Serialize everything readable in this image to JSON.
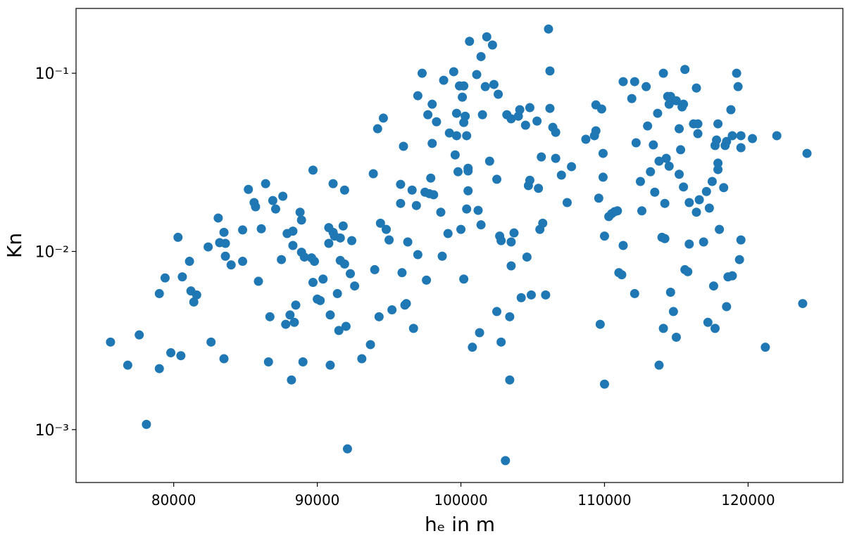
{
  "chart_data": {
    "type": "scatter",
    "xlabel": "hₑ in m",
    "ylabel": "Kn",
    "color": "#1f77b4",
    "yscale": "log",
    "xlim": [
      73200,
      126600
    ],
    "ylim": [
      0.000505,
      0.231
    ],
    "xticks": [
      80000,
      90000,
      100000,
      110000,
      120000
    ],
    "yticks": [
      {
        "value": 0.001,
        "label": "10⁻³"
      },
      {
        "value": 0.01,
        "label": "10⁻²"
      },
      {
        "value": 0.1,
        "label": "10⁻¹"
      }
    ],
    "x": [
      75600,
      76800,
      77600,
      78100,
      79000,
      79400,
      79000,
      79800,
      80300,
      80500,
      80600,
      81100,
      81200,
      81400,
      81600,
      82400,
      82600,
      83100,
      83200,
      83500,
      83600,
      83600,
      83500,
      84000,
      84800,
      84800,
      85200,
      85600,
      85700,
      85900,
      86100,
      86400,
      86600,
      86700,
      86900,
      87100,
      87500,
      87600,
      87800,
      87900,
      88100,
      88200,
      88300,
      88300,
      88400,
      88500,
      88800,
      88900,
      88900,
      89000,
      89100,
      89600,
      89700,
      89700,
      89800,
      90000,
      90200,
      90400,
      90800,
      90800,
      90900,
      90900,
      91100,
      91100,
      91200,
      91400,
      91500,
      91600,
      91600,
      91800,
      91900,
      92000,
      92100,
      91900,
      92300,
      92400,
      92600,
      93100,
      93700,
      93900,
      94000,
      94200,
      94300,
      94400,
      94600,
      94800,
      95000,
      95200,
      95800,
      95800,
      96000,
      95900,
      96100,
      96200,
      96300,
      96600,
      96700,
      96900,
      97000,
      97000,
      97300,
      97500,
      97600,
      97700,
      97800,
      97900,
      98000,
      98000,
      98100,
      98300,
      98600,
      98700,
      98800,
      99100,
      99200,
      99500,
      99600,
      99700,
      99700,
      99800,
      99900,
      100000,
      100100,
      100200,
      100200,
      100200,
      100300,
      100400,
      100500,
      100500,
      100500,
      100400,
      100600,
      100800,
      101100,
      101200,
      101300,
      101400,
      101400,
      101500,
      101700,
      101800,
      102000,
      102200,
      102300,
      102500,
      102500,
      102600,
      102700,
      102800,
      102800,
      103100,
      103200,
      103400,
      103400,
      103500,
      103500,
      103500,
      103700,
      104000,
      104100,
      104200,
      104500,
      104600,
      104700,
      104800,
      104800,
      104900,
      105300,
      105400,
      105500,
      105600,
      105700,
      105900,
      106100,
      106200,
      106200,
      106400,
      106600,
      106600,
      107000,
      107400,
      107700,
      108700,
      109300,
      109400,
      109400,
      109600,
      109700,
      109800,
      109900,
      109900,
      110000,
      110000,
      110300,
      110500,
      110700,
      110900,
      111000,
      111200,
      111300,
      111300,
      111900,
      112100,
      112100,
      112200,
      112500,
      112600,
      112900,
      113000,
      113200,
      113400,
      113500,
      113700,
      113800,
      113800,
      114000,
      114100,
      114100,
      114200,
      114200,
      114300,
      114400,
      114500,
      114500,
      114600,
      114600,
      114800,
      115000,
      115000,
      115200,
      115200,
      115300,
      115400,
      115500,
      115500,
      115600,
      115600,
      115800,
      115900,
      115900,
      116200,
      116400,
      116400,
      116500,
      116500,
      116600,
      116900,
      117100,
      117200,
      117300,
      117500,
      117600,
      117700,
      117700,
      117800,
      117900,
      117900,
      117900,
      118000,
      118300,
      118400,
      118500,
      118500,
      118600,
      118800,
      118900,
      118900,
      119200,
      119300,
      119400,
      119500,
      119500,
      119500,
      120300,
      121200,
      122000,
      123800,
      124100
    ],
    "values": [
      0.0031,
      0.0023,
      0.0034,
      0.00107,
      0.0058,
      0.0071,
      0.0022,
      0.0027,
      0.012,
      0.0026,
      0.0072,
      0.0088,
      0.006,
      0.0052,
      0.0057,
      0.0106,
      0.0031,
      0.0154,
      0.0112,
      0.0128,
      0.0111,
      0.0094,
      0.0025,
      0.0084,
      0.0088,
      0.0132,
      0.0223,
      0.0188,
      0.0178,
      0.0068,
      0.0134,
      0.024,
      0.0024,
      0.0043,
      0.0193,
      0.0173,
      0.009,
      0.0204,
      0.0039,
      0.0126,
      0.0044,
      0.0019,
      0.013,
      0.0108,
      0.004,
      0.005,
      0.0166,
      0.015,
      0.0099,
      0.0024,
      0.0093,
      0.0092,
      0.0286,
      0.0067,
      0.0088,
      0.0054,
      0.0053,
      0.007,
      0.0136,
      0.0111,
      0.0044,
      0.0023,
      0.0128,
      0.024,
      0.0122,
      0.0058,
      0.0036,
      0.0119,
      0.0089,
      0.0139,
      0.0221,
      0.0038,
      0.00078,
      0.0085,
      0.0075,
      0.0115,
      0.0064,
      0.0025,
      0.003,
      0.0273,
      0.0079,
      0.0488,
      0.0043,
      0.0144,
      0.056,
      0.0133,
      0.0116,
      0.0047,
      0.0238,
      0.0186,
      0.0389,
      0.0076,
      0.005,
      0.0051,
      0.0113,
      0.0221,
      0.0037,
      0.0181,
      0.0748,
      0.0096,
      0.1,
      0.0215,
      0.0069,
      0.0585,
      0.0211,
      0.0258,
      0.067,
      0.0404,
      0.0208,
      0.0534,
      0.0166,
      0.0094,
      0.0913,
      0.0126,
      0.0462,
      0.102,
      0.0348,
      0.0596,
      0.0446,
      0.028,
      0.0849,
      0.0133,
      0.0734,
      0.007,
      0.0849,
      0.0529,
      0.0574,
      0.0446,
      0.0293,
      0.0283,
      0.0219,
      0.0173,
      0.151,
      0.0029,
      0.0983,
      0.017,
      0.0035,
      0.124,
      0.0141,
      0.0585,
      0.0841,
      0.16,
      0.0321,
      0.144,
      0.0865,
      0.0254,
      0.0046,
      0.0762,
      0.0122,
      0.0031,
      0.0115,
      0.00067,
      0.0585,
      0.0043,
      0.0019,
      0.0083,
      0.0113,
      0.0555,
      0.0127,
      0.0574,
      0.0624,
      0.0055,
      0.0511,
      0.0093,
      0.0234,
      0.0251,
      0.0641,
      0.0057,
      0.0539,
      0.0226,
      0.0133,
      0.0339,
      0.0144,
      0.0057,
      0.177,
      0.0635,
      0.103,
      0.0497,
      0.0333,
      0.0466,
      0.0268,
      0.0188,
      0.0299,
      0.0426,
      0.0446,
      0.0475,
      0.0664,
      0.0199,
      0.0039,
      0.063,
      0.0261,
      0.0355,
      0.0018,
      0.0122,
      0.0157,
      0.0163,
      0.0167,
      0.0169,
      0.0076,
      0.0074,
      0.0108,
      0.0897,
      0.0721,
      0.0058,
      0.0897,
      0.0407,
      0.0247,
      0.0169,
      0.0841,
      0.0506,
      0.028,
      0.0396,
      0.0215,
      0.0596,
      0.0023,
      0.0321,
      0.012,
      0.1,
      0.0037,
      0.0186,
      0.0118,
      0.0333,
      0.0741,
      0.067,
      0.0301,
      0.0741,
      0.0059,
      0.0046,
      0.0033,
      0.0701,
      0.0488,
      0.0271,
      0.0372,
      0.0647,
      0.067,
      0.023,
      0.105,
      0.0079,
      0.0077,
      0.011,
      0.0188,
      0.052,
      0.0826,
      0.0166,
      0.052,
      0.0458,
      0.0195,
      0.0113,
      0.0217,
      0.004,
      0.0175,
      0.0247,
      0.0064,
      0.0037,
      0.0393,
      0.0422,
      0.0313,
      0.052,
      0.0288,
      0.0133,
      0.0228,
      0.0393,
      0.0049,
      0.0414,
      0.0072,
      0.0624,
      0.0073,
      0.0446,
      0.1,
      0.0841,
      0.009,
      0.0116,
      0.0446,
      0.0382,
      0.043,
      0.0029,
      0.0446,
      0.0051,
      0.0355
    ]
  }
}
